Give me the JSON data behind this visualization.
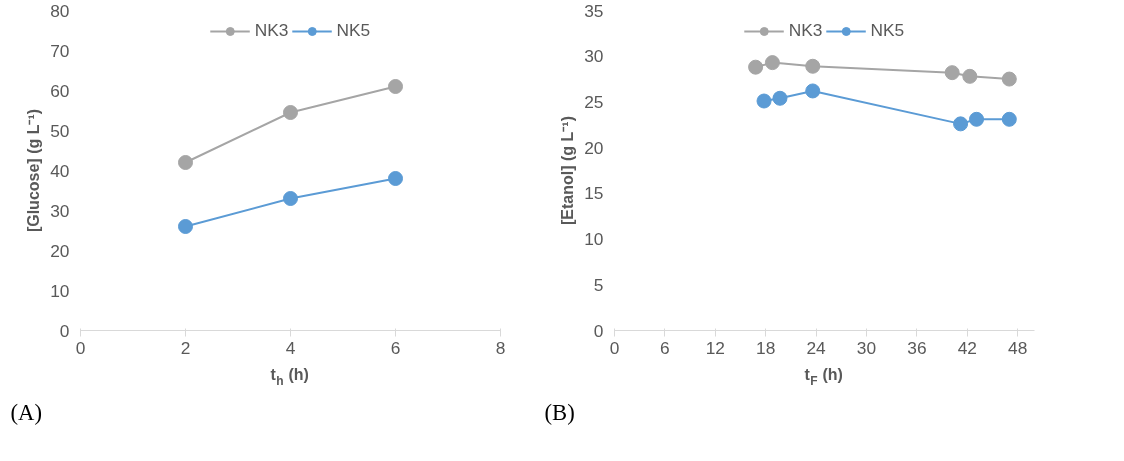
{
  "chart_data": [
    {
      "type": "line",
      "xlabel": "t$_{h}$ (h)",
      "ylabel": "[Glucose] (g L⁻¹)",
      "x": [
        2,
        4,
        6
      ],
      "series": [
        {
          "name": "NK3",
          "color": "#a5a5a5",
          "values": [
            42,
            54.5,
            61
          ]
        },
        {
          "name": "NK5",
          "color": "#5b9bd5",
          "values": [
            26,
            33,
            38
          ]
        }
      ],
      "xlim": [
        0,
        8
      ],
      "xticks": [
        0,
        2,
        4,
        6,
        8
      ],
      "ylim": [
        0,
        80
      ],
      "yticks": [
        0,
        10,
        20,
        30,
        40,
        50,
        60,
        70,
        80
      ],
      "marker": "circle",
      "line_style": "solid",
      "legend": "top",
      "grid": false,
      "annotations": [
        "(A)"
      ]
    },
    {
      "type": "line",
      "xlabel": "t$_{F}$ (h)",
      "ylabel": "[Etanol] (g L⁻¹)",
      "series": [
        {
          "name": "NK3",
          "color": "#a5a5a5",
          "x": [
            16.8,
            18.8,
            23.6,
            40.2,
            42.3,
            47
          ],
          "values": [
            28.8,
            29.3,
            28.9,
            28.2,
            27.8,
            27.5
          ]
        },
        {
          "name": "NK5",
          "color": "#5b9bd5",
          "x": [
            17.8,
            19.7,
            23.6,
            41.2,
            43.1,
            47
          ],
          "values": [
            25.1,
            25.4,
            26.2,
            22.6,
            23.1,
            23.1
          ]
        }
      ],
      "xlim": [
        0,
        50
      ],
      "xticks": [
        0,
        6,
        12,
        18,
        24,
        30,
        36,
        42,
        48
      ],
      "ylim": [
        0,
        35
      ],
      "yticks": [
        0,
        5,
        10,
        15,
        20,
        25,
        30,
        35
      ],
      "marker": "circle",
      "line_style": "solid",
      "legend": "top",
      "grid": false,
      "annotations": [
        "(B)"
      ]
    }
  ]
}
